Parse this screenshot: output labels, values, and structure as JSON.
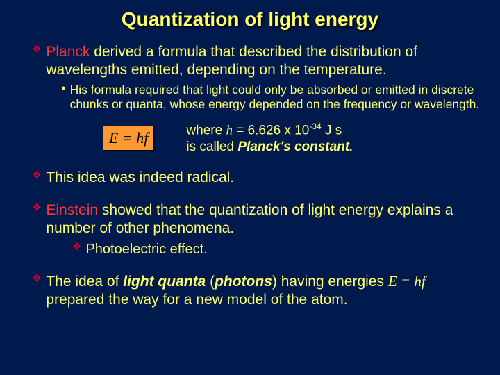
{
  "title": "Quantization of light energy",
  "bullets": {
    "b1_pre_red": "Planck",
    "b1_rest": " derived a formula that described the distribution of wavelengths emitted, depending on the temperature.",
    "b1_sub": "His formula required that light could only be absorbed or emitted in discrete chunks or quanta, whose energy depended on the frequency or wavelength.",
    "b2": "This idea was indeed radical.",
    "b3_pre_red": "Einstein",
    "b3_rest": " showed that the quantization of light energy explains a number of other phenomena.",
    "b3_sub": "Photoelectric effect.",
    "b4_pre": "The idea of ",
    "b4_lq": "light quanta",
    "b4_mid1": " (",
    "b4_ph": "photons",
    "b4_mid2": ") having energies ",
    "b4_eq": "E = hf",
    "b4_post": " prepared the way for a new model of the atom."
  },
  "equation": {
    "formula": "E = hf",
    "caption_line1_pre": "where ",
    "caption_line1_h": "h",
    "caption_line1_rest": " = 6.626 x 10",
    "caption_line1_exp": "-34",
    "caption_line1_units": " J s",
    "caption_line2_pre": "is called ",
    "caption_line2_name": "Planck's constant."
  }
}
